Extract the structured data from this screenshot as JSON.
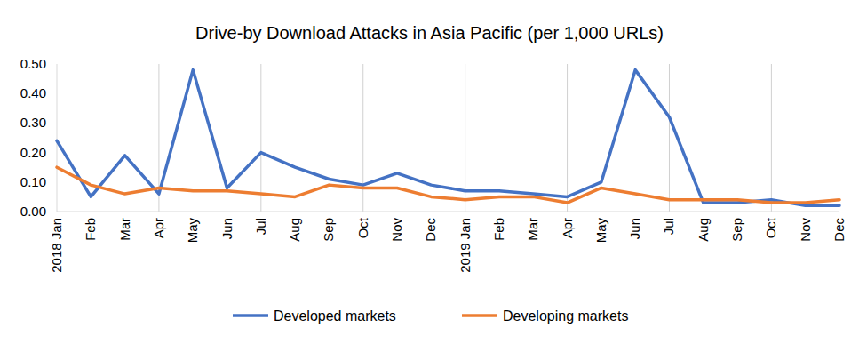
{
  "chart_data": {
    "type": "line",
    "title": "Drive-by Download Attacks in Asia Pacific  (per 1,000 URLs)",
    "categories": [
      "2018 Jan",
      "Feb",
      "Mar",
      "Apr",
      "May",
      "Jun",
      "Jul",
      "Aug",
      "Sep",
      "Oct",
      "Nov",
      "Dec",
      "2019 Jan",
      "Feb",
      "Mar",
      "Apr",
      "May",
      "Jun",
      "Jul",
      "Aug",
      "Sep",
      "Oct",
      "Nov",
      "Dec"
    ],
    "series": [
      {
        "name": "Developed markets",
        "color": "#4472c4",
        "values": [
          0.24,
          0.05,
          0.19,
          0.06,
          0.48,
          0.08,
          0.2,
          0.15,
          0.11,
          0.09,
          0.13,
          0.09,
          0.07,
          0.07,
          0.06,
          0.05,
          0.1,
          0.48,
          0.32,
          0.03,
          0.03,
          0.04,
          0.02,
          0.02
        ]
      },
      {
        "name": "Developing markets",
        "color": "#ed7d31",
        "values": [
          0.15,
          0.09,
          0.06,
          0.08,
          0.07,
          0.07,
          0.06,
          0.05,
          0.09,
          0.08,
          0.08,
          0.05,
          0.04,
          0.05,
          0.05,
          0.03,
          0.08,
          0.06,
          0.04,
          0.04,
          0.04,
          0.03,
          0.03,
          0.04
        ]
      }
    ],
    "ylim": [
      0,
      0.5
    ],
    "yticks": [
      {
        "value": 0,
        "label": "0.00"
      },
      {
        "value": 0.1,
        "label": "0.10"
      },
      {
        "value": 0.2,
        "label": "0.20"
      },
      {
        "value": 0.3,
        "label": "0.30"
      },
      {
        "value": 0.4,
        "label": "0.40"
      },
      {
        "value": 0.5,
        "label": "0.50"
      }
    ],
    "grid": true,
    "legend": "bottom"
  }
}
